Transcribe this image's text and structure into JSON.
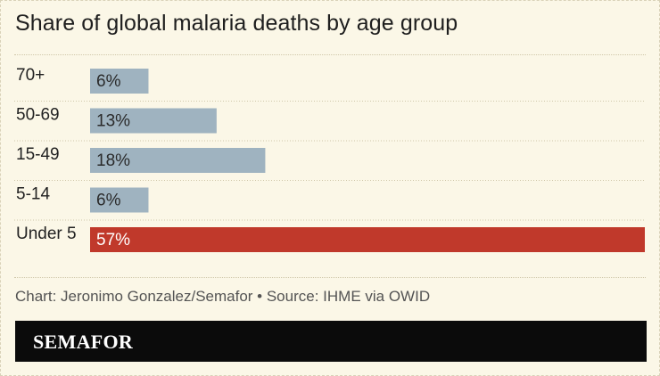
{
  "title": "Share of global malaria deaths by age group",
  "credit": "Chart: Jeronimo Gonzalez/Semafor • Source: IHME via OWID",
  "brand": "SEMAFOR",
  "colors": {
    "background": "#fbf7e7",
    "bar_default": "#9fb3c0",
    "bar_highlight": "#c0392b",
    "brand_bar": "#0b0b0b"
  },
  "chart_data": {
    "type": "bar",
    "orientation": "horizontal",
    "title": "Share of global malaria deaths by age group",
    "categories": [
      "70+",
      "50-69",
      "15-49",
      "5-14",
      "Under 5"
    ],
    "values": [
      6,
      13,
      18,
      6,
      57
    ],
    "value_labels": [
      "6%",
      "13%",
      "18%",
      "6%",
      "57%"
    ],
    "highlight": "Under 5",
    "unit": "%",
    "xlim": [
      0,
      57
    ],
    "grid": false
  }
}
